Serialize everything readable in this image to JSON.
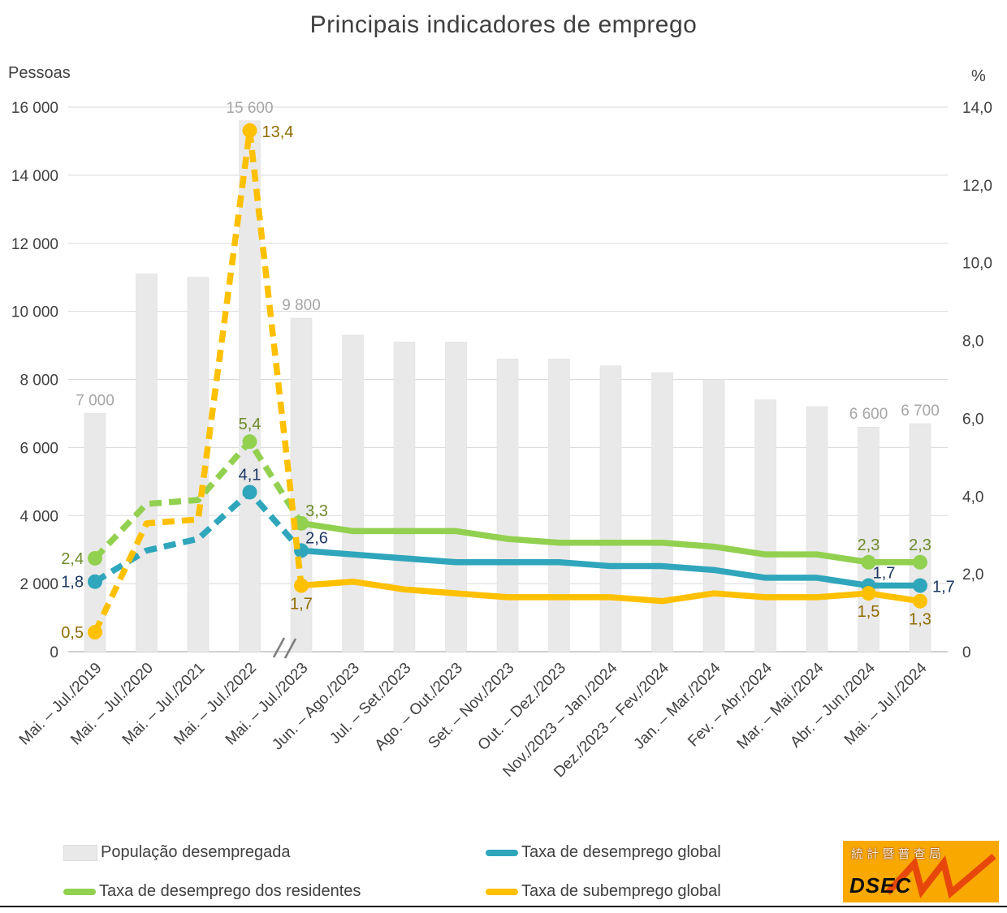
{
  "title": "Principais indicadores de emprego",
  "left_axis": {
    "unit": "Pessoas",
    "ticks": [
      "16 000",
      "14 000",
      "12 000",
      "10 000",
      "8 000",
      "6 000",
      "4 000",
      "2 000",
      "0"
    ],
    "max": 16000
  },
  "right_axis": {
    "unit": "%",
    "ticks": [
      "14,0",
      "12,0",
      "10,0",
      "8,0",
      "6,0",
      "4,0",
      "2,0",
      "0"
    ],
    "max": 14
  },
  "chart_data": {
    "type": "bar+line combo",
    "categories": [
      "Mai. – Jul./2019",
      "Mai. – Jul./2020",
      "Mai. – Jul./2021",
      "Mai. – Jul./2022",
      "Mai. – Jul./2023",
      "Jun. – Ago./2023",
      "Jul. – Set./2023",
      "Ago. – Out./2023",
      "Set. – Nov./2023",
      "Out. – Dez./2023",
      "Nov./2023 – Jan./2024",
      "Dez./2023 – Fev./2024",
      "Jan. – Mar./2024",
      "Fev. – Abr./2024",
      "Mar. – Mai./2024",
      "Abr. – Jun./2024",
      "Mai. – Jul./2024"
    ],
    "axis_break_after_index": 3,
    "dashed_until_index": 4,
    "bars": {
      "name": "População desempregada",
      "color": "#E9E9E9",
      "label_color": "#A6A6A6",
      "values": [
        7000,
        11100,
        11000,
        15600,
        9800,
        9300,
        9100,
        9100,
        8600,
        8600,
        8400,
        8200,
        8000,
        7400,
        7200,
        6600,
        6700
      ],
      "labels": [
        {
          "i": 0,
          "t": "7 000"
        },
        {
          "i": 3,
          "t": "15 600"
        },
        {
          "i": 4,
          "t": "9 800"
        },
        {
          "i": 15,
          "t": "6 600"
        },
        {
          "i": 16,
          "t": "6 700"
        }
      ]
    },
    "series": [
      {
        "name": "Taxa de desemprego dos residentes",
        "color": "#92D050",
        "label_color": "#6E8B2A",
        "values": [
          2.4,
          3.8,
          3.9,
          5.4,
          3.3,
          3.1,
          3.1,
          3.1,
          2.9,
          2.8,
          2.8,
          2.8,
          2.7,
          2.5,
          2.5,
          2.3,
          2.3
        ],
        "labels": [
          {
            "i": 0,
            "t": "2,4",
            "pos": "left"
          },
          {
            "i": 3,
            "t": "5,4",
            "pos": "above"
          },
          {
            "i": 4,
            "t": "3,3",
            "pos": "above-right"
          },
          {
            "i": 15,
            "t": "2,3",
            "pos": "above"
          },
          {
            "i": 16,
            "t": "2,3",
            "pos": "above"
          }
        ]
      },
      {
        "name": "Taxa de desemprego global",
        "color": "#2FA6BB",
        "label_color": "#1F3864",
        "values": [
          1.8,
          2.6,
          2.9,
          4.1,
          2.6,
          2.5,
          2.4,
          2.3,
          2.3,
          2.3,
          2.2,
          2.2,
          2.1,
          1.9,
          1.9,
          1.7,
          1.7
        ],
        "labels": [
          {
            "i": 0,
            "t": "1,8",
            "pos": "left"
          },
          {
            "i": 3,
            "t": "4,1",
            "pos": "above"
          },
          {
            "i": 4,
            "t": "2,6",
            "pos": "above-right"
          },
          {
            "i": 15,
            "t": "1,7",
            "pos": "above-right"
          },
          {
            "i": 16,
            "t": "1,7",
            "pos": "right"
          }
        ]
      },
      {
        "name": "Taxa de subemprego global",
        "color": "#FFC000",
        "label_color": "#8F6C00",
        "values": [
          0.5,
          3.3,
          3.4,
          13.4,
          1.7,
          1.8,
          1.6,
          1.5,
          1.4,
          1.4,
          1.4,
          1.3,
          1.5,
          1.4,
          1.4,
          1.5,
          1.3
        ],
        "labels": [
          {
            "i": 0,
            "t": "0,5",
            "pos": "left"
          },
          {
            "i": 3,
            "t": "13,4",
            "pos": "right"
          },
          {
            "i": 4,
            "t": "1,7",
            "pos": "below"
          },
          {
            "i": 15,
            "t": "1,5",
            "pos": "below"
          },
          {
            "i": 16,
            "t": "1,3",
            "pos": "below"
          }
        ]
      }
    ]
  },
  "legend": {
    "bars_label": "População desempregada",
    "global_label": "Taxa de desemprego global",
    "residents_label": "Taxa de desemprego dos residentes",
    "underemployment_label": "Taxa de subemprego global"
  },
  "logo": {
    "chars": "統 計 暨 普 查 局",
    "acronym": "DSEC"
  }
}
